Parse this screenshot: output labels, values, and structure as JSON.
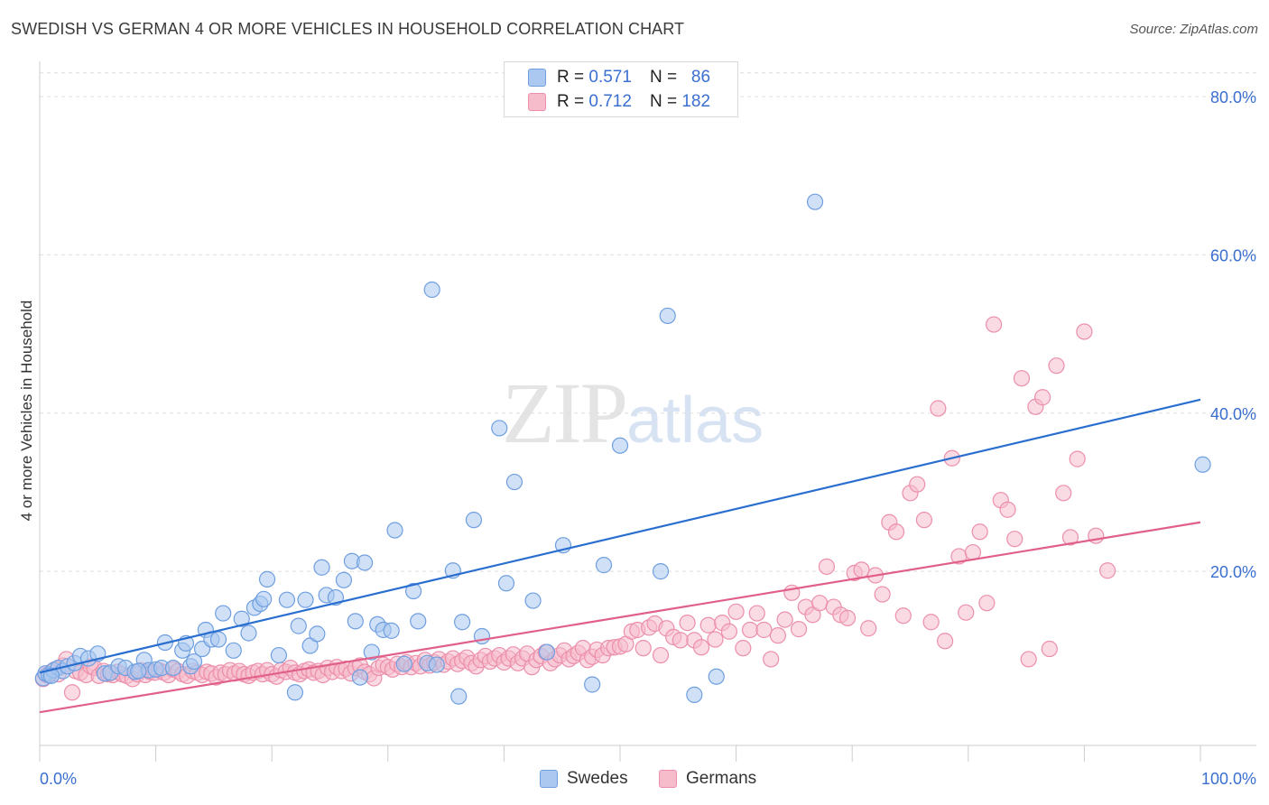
{
  "title": "SWEDISH VS GERMAN 4 OR MORE VEHICLES IN HOUSEHOLD CORRELATION CHART",
  "source": "Source: ZipAtlas.com",
  "watermark": {
    "zip": "ZIP",
    "atlas": "atlas"
  },
  "legend": {
    "r_label": "R =",
    "n_label": "N =",
    "swedes": {
      "r": "0.571",
      "n": "86"
    },
    "germans": {
      "r": "0.712",
      "n": "182"
    }
  },
  "colors": {
    "swedes_fill": "#aac8f0",
    "swedes_stroke": "#6f9fe0",
    "swedes_line": "#2a6fd0",
    "germans_fill": "#f6bccc",
    "germans_stroke": "#ec8fab",
    "germans_line": "#e0608a",
    "tick_label": "#3a6fd0",
    "grid": "#dddddd"
  },
  "chart_data": {
    "type": "scatter",
    "title": "SWEDISH VS GERMAN 4 OR MORE VEHICLES IN HOUSEHOLD CORRELATION CHART",
    "xlabel": "",
    "ylabel": "4 or more Vehicles in Household",
    "xlim": [
      0,
      100
    ],
    "ylim": [
      -2,
      84
    ],
    "grid": true,
    "legend_position": "bottom-center",
    "x_tick_labels": [
      "0.0%",
      "100.0%"
    ],
    "y_ticks": [
      20,
      40,
      60,
      80
    ],
    "y_tick_labels": [
      "20.0%",
      "40.0%",
      "60.0%",
      "80.0%"
    ],
    "series": [
      {
        "name": "Swedes",
        "r": 0.571,
        "n": 86,
        "trend": [
          [
            0,
            7.2
          ],
          [
            100,
            41.7
          ]
        ],
        "points": [
          [
            0.3,
            6.5
          ],
          [
            0.5,
            7.1
          ],
          [
            0.8,
            6.9
          ],
          [
            1.2,
            7.5
          ],
          [
            1.6,
            7.8
          ],
          [
            2.0,
            7.4
          ],
          [
            2.4,
            8.0
          ],
          [
            3.0,
            8.4
          ],
          [
            3.5,
            9.3
          ],
          [
            4.2,
            9.0
          ],
          [
            5.0,
            9.6
          ],
          [
            5.6,
            7.1
          ],
          [
            6.1,
            7.2
          ],
          [
            6.8,
            8.0
          ],
          [
            7.4,
            7.8
          ],
          [
            8.2,
            7.3
          ],
          [
            9.0,
            8.8
          ],
          [
            9.4,
            7.5
          ],
          [
            10.0,
            7.6
          ],
          [
            10.5,
            7.8
          ],
          [
            10.8,
            11.0
          ],
          [
            11.5,
            7.8
          ],
          [
            12.3,
            10.0
          ],
          [
            12.6,
            10.9
          ],
          [
            13.0,
            8.0
          ],
          [
            13.3,
            8.6
          ],
          [
            14.0,
            10.2
          ],
          [
            14.3,
            12.6
          ],
          [
            14.8,
            11.4
          ],
          [
            15.4,
            11.4
          ],
          [
            15.8,
            14.7
          ],
          [
            16.7,
            10.0
          ],
          [
            17.4,
            14.0
          ],
          [
            18.0,
            12.2
          ],
          [
            18.5,
            15.4
          ],
          [
            19.0,
            15.9
          ],
          [
            19.3,
            16.5
          ],
          [
            19.6,
            19.0
          ],
          [
            20.6,
            9.4
          ],
          [
            21.3,
            16.4
          ],
          [
            22.0,
            4.7
          ],
          [
            22.3,
            13.1
          ],
          [
            22.9,
            16.4
          ],
          [
            23.3,
            10.6
          ],
          [
            23.9,
            12.1
          ],
          [
            24.3,
            20.5
          ],
          [
            24.7,
            17.0
          ],
          [
            25.5,
            16.7
          ],
          [
            26.2,
            18.9
          ],
          [
            26.9,
            21.3
          ],
          [
            27.2,
            13.7
          ],
          [
            27.6,
            6.6
          ],
          [
            28.0,
            21.1
          ],
          [
            28.6,
            9.8
          ],
          [
            29.1,
            13.3
          ],
          [
            29.6,
            12.6
          ],
          [
            30.3,
            12.5
          ],
          [
            30.6,
            25.2
          ],
          [
            31.4,
            8.3
          ],
          [
            32.2,
            17.5
          ],
          [
            32.6,
            13.7
          ],
          [
            33.4,
            8.4
          ],
          [
            33.8,
            55.6
          ],
          [
            34.2,
            8.2
          ],
          [
            35.6,
            20.1
          ],
          [
            36.1,
            4.2
          ],
          [
            36.4,
            13.6
          ],
          [
            37.4,
            26.5
          ],
          [
            38.1,
            11.8
          ],
          [
            39.6,
            38.1
          ],
          [
            40.2,
            18.5
          ],
          [
            40.9,
            31.3
          ],
          [
            42.5,
            16.3
          ],
          [
            43.7,
            9.8
          ],
          [
            45.1,
            23.3
          ],
          [
            47.6,
            5.7
          ],
          [
            48.6,
            20.8
          ],
          [
            50.0,
            35.9
          ],
          [
            53.5,
            20.0
          ],
          [
            54.1,
            52.3
          ],
          [
            56.4,
            4.4
          ],
          [
            58.3,
            6.7
          ],
          [
            66.8,
            66.7
          ],
          [
            100.2,
            33.5
          ],
          [
            1.0,
            6.8
          ],
          [
            8.5,
            7.4
          ]
        ]
      },
      {
        "name": "Germans",
        "r": 0.712,
        "n": 182,
        "trend": [
          [
            0,
            2.2
          ],
          [
            100,
            26.2
          ]
        ],
        "points": [
          [
            0.3,
            6.4
          ],
          [
            0.6,
            6.9
          ],
          [
            1.0,
            7.3
          ],
          [
            1.3,
            7.6
          ],
          [
            1.6,
            7.0
          ],
          [
            2.0,
            8.1
          ],
          [
            2.3,
            8.9
          ],
          [
            2.8,
            4.7
          ],
          [
            3.1,
            7.4
          ],
          [
            3.5,
            7.2
          ],
          [
            4.0,
            6.9
          ],
          [
            4.4,
            8.0
          ],
          [
            4.7,
            7.8
          ],
          [
            5.1,
            6.8
          ],
          [
            5.5,
            7.4
          ],
          [
            5.9,
            7.0
          ],
          [
            6.3,
            6.9
          ],
          [
            6.7,
            7.3
          ],
          [
            7.1,
            7.0
          ],
          [
            7.5,
            6.8
          ],
          [
            8.0,
            6.4
          ],
          [
            8.4,
            7.0
          ],
          [
            8.7,
            7.5
          ],
          [
            9.1,
            6.9
          ],
          [
            9.5,
            7.3
          ],
          [
            9.9,
            7.2
          ],
          [
            10.3,
            7.5
          ],
          [
            10.7,
            7.2
          ],
          [
            11.1,
            6.9
          ],
          [
            11.5,
            7.6
          ],
          [
            11.9,
            7.4
          ],
          [
            12.3,
            7.0
          ],
          [
            12.7,
            6.8
          ],
          [
            13.2,
            7.4
          ],
          [
            13.6,
            7.2
          ],
          [
            14.0,
            6.9
          ],
          [
            14.4,
            7.3
          ],
          [
            14.8,
            7.1
          ],
          [
            15.2,
            6.6
          ],
          [
            15.6,
            7.2
          ],
          [
            16.0,
            7.0
          ],
          [
            16.4,
            7.5
          ],
          [
            16.8,
            7.1
          ],
          [
            17.2,
            7.4
          ],
          [
            17.6,
            7.0
          ],
          [
            18.0,
            6.8
          ],
          [
            18.4,
            7.2
          ],
          [
            18.8,
            7.4
          ],
          [
            19.2,
            7.0
          ],
          [
            19.6,
            7.5
          ],
          [
            20.0,
            7.0
          ],
          [
            20.4,
            6.7
          ],
          [
            20.8,
            7.5
          ],
          [
            21.2,
            7.3
          ],
          [
            21.6,
            7.8
          ],
          [
            22.0,
            7.2
          ],
          [
            22.4,
            7.0
          ],
          [
            22.8,
            7.4
          ],
          [
            23.2,
            7.6
          ],
          [
            23.6,
            7.2
          ],
          [
            24.0,
            7.4
          ],
          [
            24.4,
            6.9
          ],
          [
            24.8,
            7.8
          ],
          [
            25.2,
            7.3
          ],
          [
            25.6,
            7.9
          ],
          [
            26.0,
            7.4
          ],
          [
            26.4,
            7.7
          ],
          [
            26.8,
            7.1
          ],
          [
            27.2,
            7.8
          ],
          [
            27.6,
            8.1
          ],
          [
            28.0,
            7.3
          ],
          [
            28.4,
            7.0
          ],
          [
            28.8,
            6.5
          ],
          [
            29.2,
            7.8
          ],
          [
            29.6,
            8.2
          ],
          [
            30.0,
            7.9
          ],
          [
            30.4,
            7.6
          ],
          [
            30.8,
            8.3
          ],
          [
            31.2,
            7.9
          ],
          [
            31.6,
            8.5
          ],
          [
            32.0,
            7.9
          ],
          [
            32.4,
            8.4
          ],
          [
            32.8,
            8.0
          ],
          [
            33.2,
            8.8
          ],
          [
            33.6,
            8.1
          ],
          [
            34.0,
            8.5
          ],
          [
            34.4,
            8.9
          ],
          [
            34.8,
            8.2
          ],
          [
            35.2,
            8.6
          ],
          [
            35.6,
            9.0
          ],
          [
            36.0,
            8.3
          ],
          [
            36.4,
            8.7
          ],
          [
            36.8,
            9.1
          ],
          [
            37.2,
            8.4
          ],
          [
            37.6,
            8.0
          ],
          [
            38.0,
            8.8
          ],
          [
            38.4,
            9.3
          ],
          [
            38.8,
            8.6
          ],
          [
            39.2,
            9.0
          ],
          [
            39.6,
            9.4
          ],
          [
            40.0,
            8.5
          ],
          [
            40.4,
            9.0
          ],
          [
            40.8,
            9.5
          ],
          [
            41.2,
            8.4
          ],
          [
            41.6,
            9.0
          ],
          [
            42.0,
            9.6
          ],
          [
            42.4,
            7.9
          ],
          [
            42.8,
            8.8
          ],
          [
            43.2,
            9.3
          ],
          [
            43.6,
            9.8
          ],
          [
            44.0,
            8.4
          ],
          [
            44.4,
            8.9
          ],
          [
            44.8,
            9.4
          ],
          [
            45.2,
            10.0
          ],
          [
            45.6,
            8.9
          ],
          [
            46.0,
            9.3
          ],
          [
            46.4,
            9.7
          ],
          [
            46.8,
            10.3
          ],
          [
            47.2,
            8.8
          ],
          [
            47.6,
            9.2
          ],
          [
            48.0,
            10.1
          ],
          [
            48.5,
            9.4
          ],
          [
            49.0,
            10.3
          ],
          [
            49.5,
            10.4
          ],
          [
            50.0,
            10.5
          ],
          [
            50.5,
            10.8
          ],
          [
            51.0,
            12.4
          ],
          [
            51.5,
            12.6
          ],
          [
            52.0,
            10.3
          ],
          [
            52.5,
            12.9
          ],
          [
            53.0,
            13.4
          ],
          [
            53.5,
            9.4
          ],
          [
            54.0,
            12.8
          ],
          [
            54.6,
            11.7
          ],
          [
            55.2,
            11.3
          ],
          [
            55.8,
            13.5
          ],
          [
            56.4,
            11.3
          ],
          [
            57.0,
            10.4
          ],
          [
            57.6,
            13.2
          ],
          [
            58.2,
            11.4
          ],
          [
            58.8,
            13.5
          ],
          [
            59.4,
            12.4
          ],
          [
            60.0,
            14.9
          ],
          [
            60.6,
            10.3
          ],
          [
            61.2,
            12.6
          ],
          [
            61.8,
            14.7
          ],
          [
            62.4,
            12.6
          ],
          [
            63.0,
            8.9
          ],
          [
            63.6,
            11.9
          ],
          [
            64.2,
            13.9
          ],
          [
            64.8,
            17.3
          ],
          [
            65.4,
            12.7
          ],
          [
            66.0,
            15.5
          ],
          [
            66.6,
            14.5
          ],
          [
            67.2,
            16.0
          ],
          [
            67.8,
            20.6
          ],
          [
            68.4,
            15.5
          ],
          [
            69.0,
            14.5
          ],
          [
            69.6,
            14.1
          ],
          [
            70.2,
            19.8
          ],
          [
            70.8,
            20.2
          ],
          [
            71.4,
            12.8
          ],
          [
            72.0,
            19.5
          ],
          [
            72.6,
            17.1
          ],
          [
            73.2,
            26.2
          ],
          [
            73.8,
            25.0
          ],
          [
            74.4,
            14.4
          ],
          [
            75.0,
            29.9
          ],
          [
            75.6,
            31.0
          ],
          [
            76.2,
            26.5
          ],
          [
            76.8,
            13.6
          ],
          [
            77.4,
            40.6
          ],
          [
            78.0,
            11.2
          ],
          [
            78.6,
            34.3
          ],
          [
            79.2,
            21.9
          ],
          [
            79.8,
            14.8
          ],
          [
            80.4,
            22.4
          ],
          [
            81.0,
            25.0
          ],
          [
            81.6,
            16.0
          ],
          [
            82.2,
            51.2
          ],
          [
            82.8,
            29.0
          ],
          [
            83.4,
            27.8
          ],
          [
            84.0,
            24.1
          ],
          [
            84.6,
            44.4
          ],
          [
            85.2,
            8.9
          ],
          [
            85.8,
            40.8
          ],
          [
            86.4,
            42.0
          ],
          [
            87.0,
            10.2
          ],
          [
            87.6,
            46.0
          ],
          [
            88.2,
            29.9
          ],
          [
            88.8,
            24.3
          ],
          [
            89.4,
            34.2
          ],
          [
            90.0,
            50.3
          ],
          [
            91.0,
            24.5
          ],
          [
            92.0,
            20.1
          ]
        ]
      }
    ]
  }
}
